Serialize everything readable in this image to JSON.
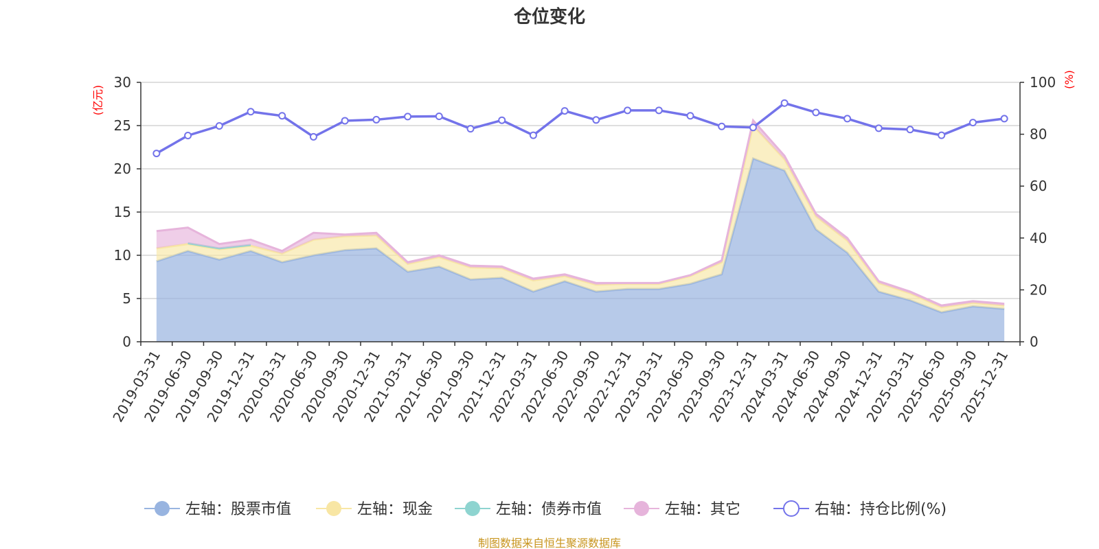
{
  "chart_data": {
    "type": "area",
    "title": "仓位变化",
    "left_axis_unit": "(亿元)",
    "right_axis_unit": "(%)",
    "categories": [
      "2019-03-31",
      "2019-06-30",
      "2019-09-30",
      "2019-12-31",
      "2020-03-31",
      "2020-06-30",
      "2020-09-30",
      "2020-12-31",
      "2021-03-31",
      "2021-06-30",
      "2021-09-30",
      "2021-12-31",
      "2022-03-31",
      "2022-06-30",
      "2022-09-30",
      "2022-12-31",
      "2023-03-31",
      "2023-06-30",
      "2023-09-30",
      "2023-12-31",
      "2024-03-31",
      "2024-06-30",
      "2024-09-30",
      "2024-12-31",
      "2025-03-31",
      "2025-06-30",
      "2025-09-30",
      "2025-12-31"
    ],
    "ylim_left": [
      0,
      30
    ],
    "yticks_left": [
      "0",
      "5",
      "10",
      "15",
      "20",
      "25",
      "30"
    ],
    "ylim_right": [
      0,
      100
    ],
    "yticks_right": [
      "0",
      "20",
      "40",
      "60",
      "80",
      "100"
    ],
    "grid": true,
    "legend_position": "bottom",
    "series": [
      {
        "name": "左轴：股票市值",
        "axis": "left",
        "kind": "stacked-area",
        "color": "#98b4e0",
        "values": [
          9.3,
          10.5,
          9.5,
          10.5,
          9.2,
          10.0,
          10.6,
          10.8,
          8.1,
          8.7,
          7.2,
          7.4,
          5.8,
          7.0,
          5.8,
          6.1,
          6.1,
          6.7,
          7.8,
          21.2,
          19.8,
          13.0,
          10.3,
          5.8,
          4.8,
          3.4,
          4.1,
          3.8
        ]
      },
      {
        "name": "左轴：现金",
        "axis": "left",
        "kind": "stacked-area",
        "color": "#f8e6a4",
        "values": [
          1.5,
          0.8,
          1.2,
          0.6,
          1.0,
          1.8,
          1.6,
          1.5,
          0.9,
          1.1,
          1.4,
          1.1,
          1.3,
          0.6,
          0.8,
          0.6,
          0.6,
          0.9,
          1.4,
          3.8,
          1.3,
          1.5,
          1.4,
          1.0,
          0.8,
          0.6,
          0.4,
          0.4
        ]
      },
      {
        "name": "左轴：债券市值",
        "axis": "left",
        "kind": "stacked-area",
        "color": "#8ed4d0",
        "values": [
          0,
          0.1,
          0.1,
          0.1,
          0,
          0,
          0,
          0,
          0,
          0,
          0,
          0,
          0,
          0,
          0,
          0,
          0,
          0,
          0,
          0,
          0,
          0,
          0,
          0,
          0,
          0,
          0,
          0
        ]
      },
      {
        "name": "左轴：其它",
        "axis": "left",
        "kind": "stacked-area",
        "color": "#e6b4db",
        "values": [
          2.0,
          1.8,
          0.5,
          0.6,
          0.3,
          0.8,
          0.2,
          0.3,
          0.2,
          0.2,
          0.2,
          0.2,
          0.2,
          0.2,
          0.2,
          0.1,
          0.1,
          0.1,
          0.2,
          0.6,
          0.4,
          0.3,
          0.3,
          0.2,
          0.2,
          0.2,
          0.2,
          0.2
        ]
      },
      {
        "name": "右轴：持仓比例(%)",
        "axis": "right",
        "kind": "line",
        "color": "#7373ea",
        "values": [
          72.6,
          79.5,
          83.2,
          88.7,
          87.1,
          79.0,
          85.2,
          85.6,
          86.8,
          86.9,
          82.1,
          85.4,
          79.6,
          89.0,
          85.5,
          89.2,
          89.2,
          87.1,
          83.0,
          82.6,
          92.0,
          88.4,
          86.0,
          82.3,
          81.8,
          79.6,
          84.5,
          86.0
        ]
      }
    ]
  },
  "legend": {
    "items": [
      {
        "label": "左轴：股票市值",
        "icon": "filled-circle",
        "color": "#98b4e0"
      },
      {
        "label": "左轴：现金",
        "icon": "filled-circle",
        "color": "#f8e6a4"
      },
      {
        "label": "左轴：债券市值",
        "icon": "filled-circle",
        "color": "#8ed4d0"
      },
      {
        "label": "左轴：其它",
        "icon": "filled-circle",
        "color": "#e6b4db"
      },
      {
        "label": "右轴：持仓比例(%)",
        "icon": "hollow-circle",
        "color": "#7373ea"
      }
    ]
  },
  "source_note": "制图数据来自恒生聚源数据库"
}
